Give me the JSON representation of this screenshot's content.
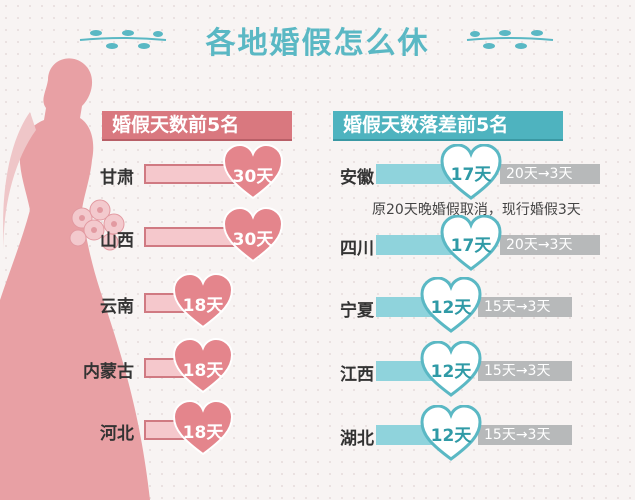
{
  "title": "各地婚假怎么休",
  "left_section": {
    "heading": "婚假天数前5名",
    "rows": [
      {
        "province": "甘肃",
        "days": "30天"
      },
      {
        "province": "山西",
        "days": "30天"
      },
      {
        "province": "云南",
        "days": "18天"
      },
      {
        "province": "内蒙古",
        "days": "18天"
      },
      {
        "province": "河北",
        "days": "18天"
      }
    ]
  },
  "right_section": {
    "heading": "婚假天数落差前5名",
    "rows": [
      {
        "province": "安徽",
        "days": "17天",
        "change": "20天→3天"
      },
      {
        "province": "四川",
        "days": "17天",
        "change": "20天→3天"
      },
      {
        "province": "宁夏",
        "days": "12天",
        "change": "15天→3天"
      },
      {
        "province": "江西",
        "days": "12天",
        "change": "15天→3天"
      },
      {
        "province": "湖北",
        "days": "12天",
        "change": "15天→3天"
      }
    ],
    "note": "原20天晚婚假取消，现行婚假3天"
  },
  "colors": {
    "pink": "#e4858c",
    "teal": "#5ab8c4",
    "bride": "#e8a0a4"
  }
}
